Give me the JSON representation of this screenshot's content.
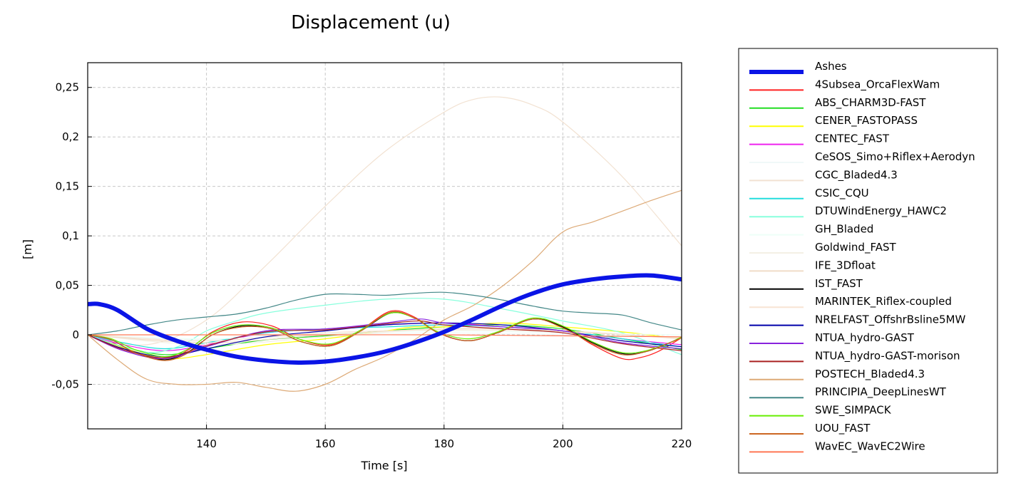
{
  "chart_data": {
    "type": "line",
    "title": "Displacement (u)",
    "xlabel": "Time [s]",
    "ylabel": "[m]",
    "xlim": [
      120,
      220
    ],
    "ylim": [
      -0.095,
      0.275
    ],
    "x_ticks": [
      140,
      160,
      180,
      200,
      220
    ],
    "x_tick_labels": [
      "140",
      "160",
      "180",
      "200",
      "220"
    ],
    "y_ticks": [
      -0.05,
      0,
      0.05,
      0.1,
      0.15,
      0.2,
      0.25
    ],
    "y_tick_labels": [
      "-0,05",
      "0",
      "0,05",
      "0,1",
      "0,15",
      "0,2",
      "0,25"
    ],
    "grid": true,
    "legend_position": "right",
    "series": [
      {
        "name": "Ashes",
        "color": "#0a14e6",
        "width": 6,
        "x": [
          120,
          122,
          125,
          130,
          135,
          140,
          145,
          150,
          155,
          160,
          165,
          170,
          175,
          180,
          185,
          190,
          195,
          200,
          205,
          210,
          215,
          220
        ],
        "y": [
          0.031,
          0.031,
          0.025,
          0.006,
          -0.006,
          -0.015,
          -0.022,
          -0.026,
          -0.028,
          -0.027,
          -0.023,
          -0.017,
          -0.008,
          0.003,
          0.016,
          0.03,
          0.042,
          0.051,
          0.056,
          0.059,
          0.06,
          0.056
        ]
      },
      {
        "name": "4Subsea_OrcaFlexWam",
        "color": "#ff2020",
        "width": 1.2,
        "x": [
          120,
          123,
          127,
          133,
          137,
          141,
          146,
          151,
          156,
          161,
          166,
          171,
          175,
          179,
          184,
          189,
          195,
          200,
          205,
          210,
          213,
          216,
          220
        ],
        "y": [
          0,
          -0.004,
          -0.016,
          -0.024,
          -0.015,
          0.003,
          0.013,
          0.009,
          -0.005,
          -0.01,
          0.005,
          0.024,
          0.018,
          0.002,
          -0.006,
          0.002,
          0.016,
          0.008,
          -0.01,
          -0.024,
          -0.023,
          -0.017,
          -0.003
        ]
      },
      {
        "name": "ABS_CHARM3D-FAST",
        "color": "#22dd22",
        "width": 1.2,
        "x": [
          120,
          126,
          133,
          140,
          150,
          160,
          170,
          180,
          190,
          200,
          210,
          220
        ],
        "y": [
          0,
          -0.012,
          -0.02,
          -0.014,
          -0.005,
          -0.001,
          0.004,
          0.008,
          0.01,
          0.006,
          -0.004,
          -0.015
        ]
      },
      {
        "name": "CENER_FASTOPASS",
        "color": "#ffff00",
        "width": 1.2,
        "x": [
          120,
          126,
          133,
          140,
          150,
          160,
          170,
          175,
          180,
          190,
          200,
          210,
          220
        ],
        "y": [
          0,
          -0.013,
          -0.024,
          -0.02,
          -0.01,
          -0.004,
          0.004,
          0.008,
          0.008,
          0.012,
          0.008,
          0.003,
          -0.004
        ]
      },
      {
        "name": "CENTEC_FAST",
        "color": "#ee22ee",
        "width": 1.2,
        "x": [
          120,
          126,
          133,
          140,
          150,
          160,
          170,
          180,
          190,
          200,
          210,
          220
        ],
        "y": [
          0,
          -0.01,
          -0.016,
          -0.01,
          0.002,
          0.006,
          0.01,
          0.012,
          0.008,
          0.004,
          -0.004,
          -0.01
        ]
      },
      {
        "name": "CeSOS_Simo+Riflex+Aerodyn",
        "color": "#f0f8f8",
        "width": 1.2,
        "x": [
          120,
          140,
          160,
          180,
          200,
          220
        ],
        "y": [
          0,
          -0.005,
          0.0,
          0.002,
          0.0,
          -0.002
        ]
      },
      {
        "name": "CGC_Bladed4.3",
        "color": "#f2e2d2",
        "width": 1.2,
        "x": [
          120,
          130,
          140,
          150,
          160,
          170,
          180,
          185,
          190,
          195,
          200,
          210,
          220
        ],
        "y": [
          0,
          -0.01,
          0.015,
          0.07,
          0.13,
          0.185,
          0.225,
          0.238,
          0.24,
          0.232,
          0.215,
          0.16,
          0.09
        ]
      },
      {
        "name": "CSIC_CQU",
        "color": "#22dddd",
        "width": 1.2,
        "x": [
          120,
          126,
          133,
          140,
          150,
          160,
          170,
          180,
          190,
          200,
          210,
          220
        ],
        "y": [
          0,
          -0.008,
          -0.014,
          -0.008,
          0.002,
          0.006,
          0.008,
          0.01,
          0.008,
          0.004,
          -0.004,
          -0.012
        ]
      },
      {
        "name": "DTUWindEnergy_HAWC2",
        "color": "#88ffdd",
        "width": 1.2,
        "x": [
          120,
          126,
          131,
          136,
          140,
          145,
          150,
          160,
          170,
          180,
          190,
          200,
          210,
          220
        ],
        "y": [
          0,
          -0.012,
          -0.018,
          -0.01,
          0.004,
          0.014,
          0.022,
          0.03,
          0.036,
          0.036,
          0.026,
          0.014,
          0.002,
          -0.02
        ]
      },
      {
        "name": "GH_Bladed",
        "color": "#eefff8",
        "width": 1.2,
        "x": [
          120,
          140,
          160,
          180,
          200,
          220
        ],
        "y": [
          0,
          -0.004,
          0.001,
          0.004,
          0.002,
          0.0
        ]
      },
      {
        "name": "Goldwind_FAST",
        "color": "#f4f0e4",
        "width": 1.2,
        "x": [
          120,
          140,
          160,
          180,
          200,
          220
        ],
        "y": [
          0,
          -0.01,
          -0.002,
          0.006,
          0.004,
          -0.004
        ]
      },
      {
        "name": "IFE_3Dfloat",
        "color": "#f0dcc8",
        "width": 1.2,
        "x": [
          120,
          140,
          160,
          180,
          200,
          220
        ],
        "y": [
          0,
          -0.008,
          0.0,
          0.006,
          0.004,
          -0.004
        ]
      },
      {
        "name": "IST_FAST",
        "color": "#000000",
        "width": 1.2,
        "x": [
          120,
          124,
          128,
          133,
          137,
          141,
          146,
          151,
          156,
          161,
          166,
          171,
          175,
          179,
          184,
          189,
          195,
          200,
          205,
          210,
          214,
          218,
          220
        ],
        "y": [
          0,
          -0.005,
          -0.018,
          -0.025,
          -0.017,
          0.0,
          0.009,
          0.006,
          -0.007,
          -0.011,
          0.004,
          0.022,
          0.017,
          0.002,
          -0.006,
          0.002,
          0.016,
          0.008,
          -0.008,
          -0.019,
          -0.017,
          -0.008,
          -0.002
        ]
      },
      {
        "name": "MARINTEK_Riflex-coupled",
        "color": "#f8e4d4",
        "width": 1.2,
        "x": [
          120,
          140,
          160,
          180,
          200,
          220
        ],
        "y": [
          0,
          -0.006,
          0.002,
          0.005,
          0.003,
          -0.003
        ]
      },
      {
        "name": "NRELFAST_OffshrBsline5MW",
        "color": "#0000aa",
        "width": 1.2,
        "x": [
          120,
          126,
          133,
          140,
          150,
          160,
          170,
          180,
          190,
          200,
          210,
          220
        ],
        "y": [
          0,
          -0.014,
          -0.022,
          -0.014,
          -0.002,
          0.004,
          0.01,
          0.012,
          0.01,
          0.004,
          -0.006,
          -0.012
        ]
      },
      {
        "name": "NTUA_hydro-GAST",
        "color": "#8822dd",
        "width": 1.2,
        "x": [
          120,
          126,
          133,
          140,
          150,
          160,
          170,
          176,
          180,
          190,
          200,
          210,
          220
        ],
        "y": [
          0,
          -0.016,
          -0.024,
          -0.012,
          0.004,
          0.006,
          0.012,
          0.016,
          0.012,
          0.008,
          0.004,
          -0.008,
          -0.014
        ]
      },
      {
        "name": "NTUA_hydro-GAST-morison",
        "color": "#aa2222",
        "width": 1.2,
        "x": [
          120,
          126,
          133,
          140,
          150,
          160,
          170,
          176,
          180,
          190,
          200,
          210,
          220
        ],
        "y": [
          0,
          -0.015,
          -0.023,
          -0.011,
          0.003,
          0.005,
          0.011,
          0.014,
          0.01,
          0.006,
          0.002,
          -0.009,
          -0.016
        ]
      },
      {
        "name": "POSTECH_Bladed4.3",
        "color": "#ddaa77",
        "width": 1.2,
        "x": [
          120,
          125,
          130,
          135,
          140,
          145,
          150,
          155,
          160,
          165,
          170,
          175,
          180,
          185,
          190,
          195,
          200,
          205,
          210,
          215,
          220
        ],
        "y": [
          0,
          -0.025,
          -0.045,
          -0.05,
          -0.05,
          -0.048,
          -0.053,
          -0.057,
          -0.05,
          -0.035,
          -0.022,
          -0.005,
          0.015,
          0.03,
          0.05,
          0.075,
          0.104,
          0.114,
          0.125,
          0.136,
          0.146
        ]
      },
      {
        "name": "PRINCIPIA_DeepLinesWT",
        "color": "#448888",
        "width": 1.2,
        "x": [
          120,
          125,
          130,
          135,
          140,
          145,
          150,
          155,
          160,
          165,
          170,
          175,
          180,
          185,
          190,
          195,
          200,
          205,
          210,
          215,
          220
        ],
        "y": [
          0,
          0.004,
          0.01,
          0.015,
          0.018,
          0.021,
          0.027,
          0.035,
          0.041,
          0.041,
          0.04,
          0.042,
          0.043,
          0.04,
          0.035,
          0.029,
          0.024,
          0.022,
          0.02,
          0.012,
          0.005
        ]
      },
      {
        "name": "SWE_SIMPACK",
        "color": "#66ee00",
        "width": 1.2,
        "x": [
          120,
          124,
          128,
          133,
          137,
          141,
          146,
          151,
          156,
          161,
          166,
          171,
          175,
          179,
          184,
          189,
          195,
          200,
          205,
          210,
          214,
          218,
          220
        ],
        "y": [
          0,
          -0.004,
          -0.015,
          -0.022,
          -0.014,
          0.002,
          0.01,
          0.007,
          -0.005,
          -0.009,
          0.005,
          0.022,
          0.017,
          0.003,
          -0.004,
          0.003,
          0.017,
          0.009,
          -0.007,
          -0.018,
          -0.016,
          -0.008,
          -0.002
        ]
      },
      {
        "name": "UOU_FAST",
        "color": "#cc6622",
        "width": 1.2,
        "x": [
          120,
          124,
          128,
          133,
          137,
          141,
          146,
          151,
          156,
          161,
          166,
          171,
          175,
          179,
          184,
          189,
          195,
          200,
          205,
          210,
          214,
          218,
          220
        ],
        "y": [
          0,
          -0.005,
          -0.018,
          -0.026,
          -0.018,
          0.0,
          0.008,
          0.006,
          -0.007,
          -0.011,
          0.004,
          0.023,
          0.017,
          0.002,
          -0.006,
          0.002,
          0.016,
          0.007,
          -0.009,
          -0.02,
          -0.017,
          -0.008,
          -0.003
        ]
      },
      {
        "name": "WavEC_WavEC2Wire",
        "color": "#ff7755",
        "width": 1.2,
        "x": [
          120,
          140,
          160,
          180,
          200,
          220
        ],
        "y": [
          0,
          0.0,
          0.0,
          0.0,
          -0.001,
          -0.002
        ]
      }
    ]
  }
}
